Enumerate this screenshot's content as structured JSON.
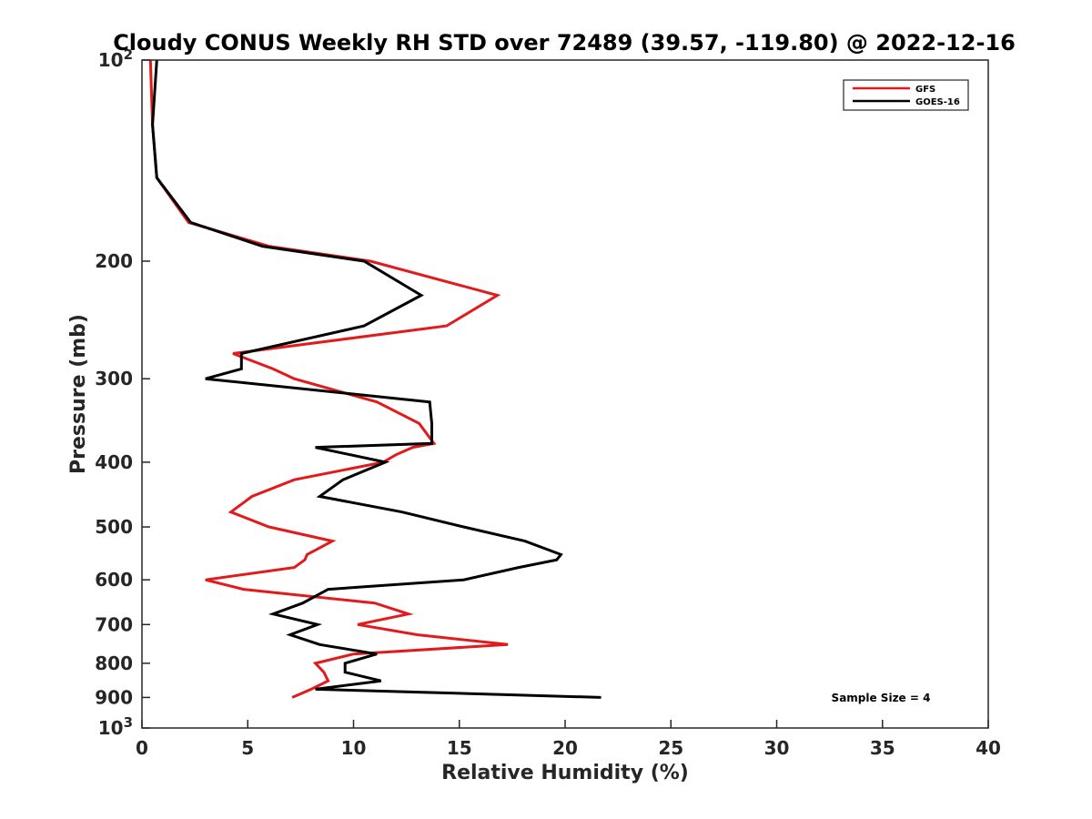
{
  "chart_data": {
    "type": "line",
    "title": "Cloudy CONUS Weekly RH STD over 72489 (39.57, -119.80) @ 2022-12-16",
    "xlabel": "Relative Humidity (%)",
    "ylabel": "Pressure (mb)",
    "xlim": [
      0,
      40
    ],
    "ylim": [
      100,
      1000
    ],
    "y_scale": "log",
    "y_reversed": true,
    "grid": false,
    "legend_position": "top-right",
    "x_ticks": [
      "0",
      "5",
      "10",
      "15",
      "20",
      "25",
      "30",
      "35",
      "40"
    ],
    "y_ticks": [
      {
        "value": 100,
        "base": "10",
        "exp": "2"
      },
      {
        "value": 200,
        "label": "200"
      },
      {
        "value": 300,
        "label": "300"
      },
      {
        "value": 400,
        "label": "400"
      },
      {
        "value": 500,
        "label": "500"
      },
      {
        "value": 600,
        "label": "600"
      },
      {
        "value": 700,
        "label": "700"
      },
      {
        "value": 800,
        "label": "800"
      },
      {
        "value": 900,
        "label": "900"
      },
      {
        "value": 1000,
        "base": "10",
        "exp": "3"
      }
    ],
    "annotation": "Sample Size = 4",
    "series": [
      {
        "name": "GFS",
        "color": "#e31a1c",
        "points": [
          [
            0.4,
            100
          ],
          [
            0.5,
            125
          ],
          [
            0.7,
            150
          ],
          [
            2.2,
            175
          ],
          [
            6.0,
            190
          ],
          [
            10.8,
            200
          ],
          [
            16.8,
            225
          ],
          [
            14.4,
            250
          ],
          [
            4.3,
            275
          ],
          [
            6.2,
            290
          ],
          [
            7.2,
            300
          ],
          [
            11.1,
            325
          ],
          [
            13.1,
            350
          ],
          [
            13.8,
            375
          ],
          [
            12.8,
            380
          ],
          [
            12.0,
            390
          ],
          [
            11.4,
            400
          ],
          [
            7.2,
            425
          ],
          [
            5.2,
            450
          ],
          [
            4.2,
            475
          ],
          [
            6.0,
            500
          ],
          [
            9.0,
            525
          ],
          [
            7.8,
            550
          ],
          [
            7.7,
            560
          ],
          [
            7.2,
            575
          ],
          [
            3.0,
            600
          ],
          [
            4.8,
            620
          ],
          [
            11.0,
            650
          ],
          [
            12.6,
            675
          ],
          [
            10.2,
            700
          ],
          [
            13.0,
            725
          ],
          [
            17.3,
            750
          ],
          [
            10.0,
            775
          ],
          [
            8.2,
            800
          ],
          [
            8.6,
            825
          ],
          [
            8.8,
            850
          ],
          [
            8.0,
            875
          ],
          [
            7.1,
            900
          ]
        ]
      },
      {
        "name": "GOES-16",
        "color": "#000000",
        "points": [
          [
            0.7,
            100
          ],
          [
            0.5,
            125
          ],
          [
            0.7,
            150
          ],
          [
            2.3,
            175
          ],
          [
            5.7,
            190
          ],
          [
            10.5,
            200
          ],
          [
            13.2,
            225
          ],
          [
            10.5,
            250
          ],
          [
            4.7,
            275
          ],
          [
            4.7,
            290
          ],
          [
            3.0,
            300
          ],
          [
            13.6,
            325
          ],
          [
            13.7,
            350
          ],
          [
            13.7,
            375
          ],
          [
            8.2,
            380
          ],
          [
            11.5,
            400
          ],
          [
            9.5,
            425
          ],
          [
            8.4,
            450
          ],
          [
            12.3,
            475
          ],
          [
            15.2,
            500
          ],
          [
            18.1,
            525
          ],
          [
            19.8,
            550
          ],
          [
            19.6,
            560
          ],
          [
            17.8,
            575
          ],
          [
            15.2,
            600
          ],
          [
            8.8,
            620
          ],
          [
            7.6,
            650
          ],
          [
            6.2,
            675
          ],
          [
            8.3,
            700
          ],
          [
            7.0,
            725
          ],
          [
            8.4,
            750
          ],
          [
            11.1,
            775
          ],
          [
            9.6,
            800
          ],
          [
            9.6,
            825
          ],
          [
            11.3,
            850
          ],
          [
            8.2,
            875
          ],
          [
            21.7,
            900
          ]
        ]
      }
    ]
  }
}
